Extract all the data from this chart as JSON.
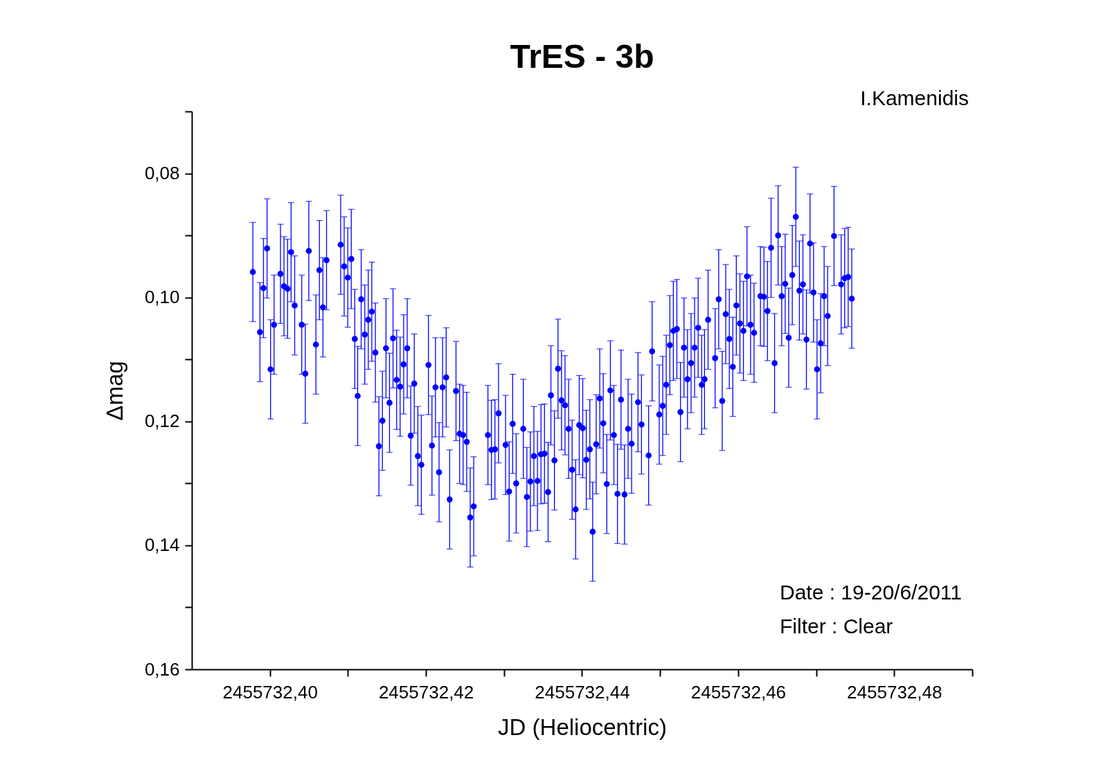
{
  "chart_data": {
    "type": "scatter",
    "title": "TrES - 3b",
    "xlabel": "JD (Heliocentric)",
    "ylabel": "Δmag",
    "annotations": [
      "I.Kamenidis",
      "Date : 19-20/6/2011",
      "Filter : Clear"
    ],
    "x": [
      2455732.39782,
      2455732.39873,
      2455732.39918,
      2455732.39964,
      2455732.40009,
      2455732.40054,
      2455732.40136,
      2455732.40181,
      2455732.40227,
      2455732.40272,
      2455732.40318,
      2455732.40408,
      2455732.40454,
      2455732.40499,
      2455732.4059,
      2455732.40635,
      2455732.4068,
      2455732.40726,
      2455732.40907,
      2455732.40952,
      2455732.40998,
      2455732.41043,
      2455732.41088,
      2455732.41125,
      2455732.4117,
      2455732.41216,
      2455732.41261,
      2455732.41306,
      2455732.41352,
      2455732.41397,
      2455732.41442,
      2455732.41488,
      2455732.41533,
      2455732.41578,
      2455732.41624,
      2455732.41669,
      2455732.41714,
      2455732.4176,
      2455732.41805,
      2455732.4185,
      2455732.41896,
      2455732.41941,
      2455732.42032,
      2455732.42077,
      2455732.42122,
      2455732.42168,
      2455732.42213,
      2455732.42259,
      2455732.42304,
      2455732.42385,
      2455732.42431,
      2455732.42476,
      2455732.42522,
      2455732.42567,
      2455732.42612,
      2455732.42794,
      2455732.42839,
      2455732.42884,
      2455732.4293,
      2455732.4302,
      2455732.43066,
      2455732.43111,
      2455732.43156,
      2455732.43247,
      2455732.43293,
      2455732.43338,
      2455732.43383,
      2455732.43429,
      2455732.43474,
      2455732.43519,
      2455732.43565,
      2455732.43601,
      2455732.43646,
      2455732.43692,
      2455732.43737,
      2455732.43782,
      2455732.43828,
      2455732.43873,
      2455732.43918,
      2455732.43964,
      2455732.44009,
      2455732.44054,
      2455732.441,
      2455732.44136,
      2455732.44181,
      2455732.44227,
      2455732.44272,
      2455732.44317,
      2455732.44363,
      2455732.44408,
      2455732.44454,
      2455732.44499,
      2455732.44544,
      2455732.4459,
      2455732.44635,
      2455732.44717,
      2455732.44762,
      2455732.44853,
      2455732.44898,
      2455732.44989,
      2455732.45034,
      2455732.45079,
      2455732.45125,
      2455732.4517,
      2455732.45215,
      2455732.45261,
      2455732.45306,
      2455732.45351,
      2455732.45397,
      2455732.45442,
      2455732.45488,
      2455732.45533,
      2455732.45569,
      2455732.45615,
      2455732.45705,
      2455732.45751,
      2455732.45796,
      2455732.45841,
      2455732.45887,
      2455732.45932,
      2455732.45977,
      2455732.46023,
      2455732.46068,
      2455732.46113,
      2455732.46159,
      2455732.46204,
      2455732.46286,
      2455732.46331,
      2455732.46376,
      2455732.46422,
      2455732.46467,
      2455732.46512,
      2455732.46558,
      2455732.46603,
      2455732.46648,
      2455732.46694,
      2455732.46739,
      2455732.46785,
      2455732.4683,
      2455732.46875,
      2455732.46921,
      2455732.46966,
      2455732.47011,
      2455732.47057,
      2455732.47102,
      2455732.47147,
      2455732.47229,
      2455732.4732,
      2455732.47365,
      2455732.4741,
      2455732.47456
    ],
    "series": [
      {
        "color": "#0000ff",
        "values": [
          0.0959,
          0.1056,
          0.0985,
          0.0921,
          0.1116,
          0.1044,
          0.0962,
          0.0982,
          0.0986,
          0.0927,
          0.1013,
          0.1044,
          0.1123,
          0.0925,
          0.1076,
          0.0956,
          0.1016,
          0.094,
          0.0915,
          0.095,
          0.0968,
          0.0938,
          0.1067,
          0.1159,
          0.1003,
          0.106,
          0.1036,
          0.1023,
          0.1089,
          0.124,
          0.1199,
          0.1082,
          0.117,
          0.1066,
          0.1133,
          0.1144,
          0.1108,
          0.1082,
          0.1223,
          0.1139,
          0.1256,
          0.127,
          0.1109,
          0.1239,
          0.1145,
          0.1282,
          0.1145,
          0.1129,
          0.1326,
          0.1151,
          0.122,
          0.1222,
          0.1233,
          0.1355,
          0.1337,
          0.1222,
          0.1246,
          0.1245,
          0.1187,
          0.1238,
          0.1313,
          0.1204,
          0.13,
          0.1212,
          0.1322,
          0.1297,
          0.1256,
          0.1296,
          0.1253,
          0.1252,
          0.1314,
          0.1158,
          0.1263,
          0.1115,
          0.1166,
          0.1174,
          0.1212,
          0.1278,
          0.1342,
          0.1206,
          0.1211,
          0.1262,
          0.1245,
          0.1378,
          0.1237,
          0.1163,
          0.1203,
          0.1301,
          0.115,
          0.1222,
          0.1317,
          0.1165,
          0.1318,
          0.1212,
          0.1236,
          0.1169,
          0.1205,
          0.1255,
          0.1087,
          0.1189,
          0.1175,
          0.1141,
          0.1077,
          0.1054,
          0.1051,
          0.1185,
          0.1081,
          0.1132,
          0.1106,
          0.1081,
          0.1049,
          0.1141,
          0.1132,
          0.1036,
          0.1098,
          0.1003,
          0.1167,
          0.1027,
          0.1067,
          0.1112,
          0.1013,
          0.1042,
          0.1054,
          0.0966,
          0.1044,
          0.1057,
          0.0998,
          0.0999,
          0.1022,
          0.092,
          0.1106,
          0.09,
          0.0998,
          0.0978,
          0.1065,
          0.0964,
          0.087,
          0.0989,
          0.0979,
          0.1068,
          0.0913,
          0.0992,
          0.1116,
          0.1074,
          0.0998,
          0.103,
          0.0901,
          0.0979,
          0.0969,
          0.0967,
          0.1002
        ],
        "errors": [
          0.008,
          0.008,
          0.008,
          0.008,
          0.008,
          0.008,
          0.008,
          0.008,
          0.008,
          0.008,
          0.008,
          0.008,
          0.008,
          0.008,
          0.008,
          0.008,
          0.008,
          0.008,
          0.008,
          0.008,
          0.008,
          0.008,
          0.008,
          0.008,
          0.008,
          0.008,
          0.008,
          0.008,
          0.008,
          0.008,
          0.008,
          0.008,
          0.008,
          0.008,
          0.008,
          0.008,
          0.008,
          0.008,
          0.008,
          0.008,
          0.008,
          0.008,
          0.008,
          0.008,
          0.008,
          0.008,
          0.008,
          0.008,
          0.008,
          0.008,
          0.008,
          0.008,
          0.008,
          0.008,
          0.008,
          0.008,
          0.008,
          0.008,
          0.008,
          0.008,
          0.008,
          0.008,
          0.008,
          0.008,
          0.008,
          0.008,
          0.008,
          0.008,
          0.008,
          0.008,
          0.008,
          0.008,
          0.008,
          0.008,
          0.008,
          0.008,
          0.008,
          0.008,
          0.008,
          0.008,
          0.008,
          0.008,
          0.008,
          0.008,
          0.008,
          0.008,
          0.008,
          0.008,
          0.008,
          0.008,
          0.008,
          0.008,
          0.008,
          0.008,
          0.008,
          0.008,
          0.008,
          0.008,
          0.008,
          0.008,
          0.008,
          0.008,
          0.008,
          0.008,
          0.008,
          0.008,
          0.008,
          0.008,
          0.008,
          0.008,
          0.008,
          0.008,
          0.008,
          0.008,
          0.008,
          0.008,
          0.008,
          0.008,
          0.008,
          0.008,
          0.008,
          0.008,
          0.008,
          0.008,
          0.008,
          0.008,
          0.008,
          0.008,
          0.008,
          0.008,
          0.008,
          0.008,
          0.008,
          0.008,
          0.008,
          0.008,
          0.008,
          0.008,
          0.008,
          0.008,
          0.008,
          0.008,
          0.008,
          0.008,
          0.008,
          0.008,
          0.008,
          0.008,
          0.008,
          0.008,
          0.008
        ]
      }
    ],
    "marker": "circle",
    "xlim": [
      2455732.39,
      2455732.49
    ],
    "xticks": [
      {
        "value": 2455732.4,
        "label": "2455732,40"
      },
      {
        "value": 2455732.41,
        "label": null
      },
      {
        "value": 2455732.42,
        "label": "2455732,42"
      },
      {
        "value": 2455732.43,
        "label": null
      },
      {
        "value": 2455732.44,
        "label": "2455732,44"
      },
      {
        "value": 2455732.45,
        "label": null
      },
      {
        "value": 2455732.46,
        "label": "2455732,46"
      },
      {
        "value": 2455732.47,
        "label": null
      },
      {
        "value": 2455732.48,
        "label": "2455732,48"
      },
      {
        "value": 2455732.49,
        "label": null
      }
    ],
    "ylim": [
      0.16,
      0.07
    ],
    "yticks": [
      {
        "value": 0.07,
        "label": null
      },
      {
        "value": 0.08,
        "label": "0,08"
      },
      {
        "value": 0.09,
        "label": null
      },
      {
        "value": 0.1,
        "label": "0,10"
      },
      {
        "value": 0.11,
        "label": null
      },
      {
        "value": 0.12,
        "label": "0,12"
      },
      {
        "value": 0.13,
        "label": null
      },
      {
        "value": 0.14,
        "label": "0,14"
      },
      {
        "value": 0.15,
        "label": null
      },
      {
        "value": 0.16,
        "label": "0,16"
      }
    ],
    "grid": false
  }
}
